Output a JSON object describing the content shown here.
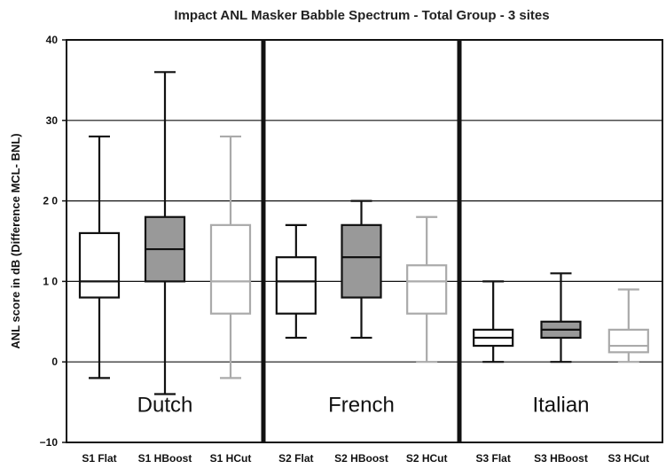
{
  "chart_data": {
    "type": "boxplot",
    "title": "Impact ANL Masker Babble Spectrum - Total Group - 3 sites",
    "xlabel": "",
    "ylabel": "ANL score in dB (Difference MCL- BNL)",
    "ylim": [
      -10,
      40
    ],
    "y_ticks": [
      {
        "value": 40,
        "label": "40"
      },
      {
        "value": 30,
        "label": "30"
      },
      {
        "value": 20,
        "label": "2 0"
      },
      {
        "value": 10,
        "label": "1 0"
      },
      {
        "value": 0,
        "label": "0"
      },
      {
        "value": -10,
        "label": "−10"
      }
    ],
    "grid": true,
    "groups": [
      {
        "label": "Dutch",
        "first_index": 0,
        "count": 3
      },
      {
        "label": "French",
        "first_index": 3,
        "count": 3
      },
      {
        "label": "Italian",
        "first_index": 6,
        "count": 3
      }
    ],
    "boxes": [
      {
        "label": "S1 Flat",
        "min": -2,
        "q1": 8,
        "median": 10,
        "q3": 16,
        "max": 28,
        "fill": "#ffffff",
        "stroke": "#111111"
      },
      {
        "label": "S1 HBoost",
        "min": -4,
        "q1": 10,
        "median": 14,
        "q3": 18,
        "max": 36,
        "fill": "#999999",
        "stroke": "#111111"
      },
      {
        "label": "S1 HCut",
        "min": -2,
        "q1": 6,
        "median": 10,
        "q3": 17,
        "max": 28,
        "fill": "#ffffff",
        "stroke": "#aaaaaa"
      },
      {
        "label": "S2 Flat",
        "min": 3,
        "q1": 6,
        "median": 10,
        "q3": 13,
        "max": 17,
        "fill": "#ffffff",
        "stroke": "#111111"
      },
      {
        "label": "S2 HBoost",
        "min": 3,
        "q1": 8,
        "median": 13,
        "q3": 17,
        "max": 20,
        "fill": "#999999",
        "stroke": "#111111"
      },
      {
        "label": "S2 HCut",
        "min": 0,
        "q1": 6,
        "median": 10,
        "q3": 12,
        "max": 18,
        "fill": "#ffffff",
        "stroke": "#aaaaaa"
      },
      {
        "label": "S3 Flat",
        "min": 0,
        "q1": 2,
        "median": 3,
        "q3": 4,
        "max": 10,
        "fill": "#ffffff",
        "stroke": "#111111"
      },
      {
        "label": "S3 HBoost",
        "min": 0,
        "q1": 3,
        "median": 4,
        "q3": 5,
        "max": 11,
        "fill": "#999999",
        "stroke": "#111111"
      },
      {
        "label": "S3 HCut",
        "min": 0,
        "q1": 1.2,
        "median": 2,
        "q3": 4,
        "max": 9,
        "fill": "#ffffff",
        "stroke": "#aaaaaa"
      }
    ]
  }
}
